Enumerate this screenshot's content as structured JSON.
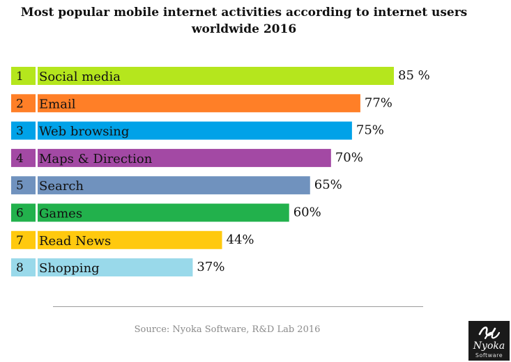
{
  "chart_data": {
    "type": "bar",
    "orientation": "horizontal",
    "title_lines": [
      "Most popular mobile internet activities according to internet users",
      "worldwide 2016"
    ],
    "ranks": [
      "1",
      "2",
      "3",
      "4",
      "5",
      "6",
      "7",
      "8"
    ],
    "categories": [
      "Social media",
      "Email",
      "Web browsing",
      "Maps & Direction",
      "Search",
      "Games",
      "Read News",
      "Shopping"
    ],
    "values": [
      85,
      77,
      75,
      70,
      65,
      60,
      44,
      37
    ],
    "value_labels": [
      "85 %",
      "77%",
      "75%",
      "70%",
      "65%",
      "60%",
      "44%",
      "37%"
    ],
    "colors": [
      "#b5e61d",
      "#ff7f27",
      "#00a2e8",
      "#a349a4",
      "#7092be",
      "#22b14c",
      "#ffc90e",
      "#99d9ea"
    ],
    "xlim": [
      0,
      85
    ],
    "grid": false,
    "legend": "none"
  },
  "footer": {
    "source": "Source: Nyoka Software, R&D Lab 2016"
  },
  "logo": {
    "icon": "nyoka-logo-mark-icon",
    "name": "Nyoka",
    "subtitle": "Software"
  }
}
